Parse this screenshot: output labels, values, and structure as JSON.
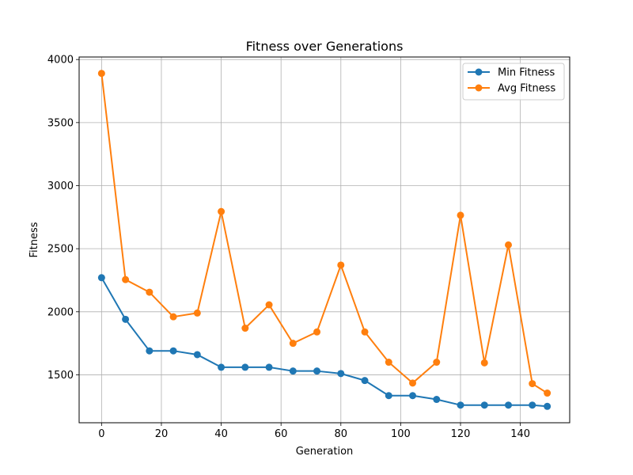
{
  "chart_data": {
    "type": "line",
    "title": "Fitness over Generations",
    "xlabel": "Generation",
    "ylabel": "Fitness",
    "xlim": [
      -7.5,
      156.5
    ],
    "ylim": [
      1120,
      4020
    ],
    "xticks": [
      0,
      20,
      40,
      60,
      80,
      100,
      120,
      140
    ],
    "yticks": [
      1500,
      2000,
      2500,
      3000,
      3500,
      4000
    ],
    "grid": true,
    "legend_position": "top-right",
    "x": [
      0,
      8,
      16,
      24,
      32,
      40,
      48,
      56,
      64,
      72,
      80,
      88,
      96,
      104,
      112,
      120,
      128,
      136,
      144,
      149
    ],
    "series": [
      {
        "name": "Min Fitness",
        "color": "#1f77b4",
        "values": [
          2270,
          1940,
          1690,
          1690,
          1660,
          1560,
          1560,
          1560,
          1530,
          1530,
          1510,
          1455,
          1335,
          1335,
          1305,
          1260,
          1260,
          1260,
          1260,
          1250
        ]
      },
      {
        "name": "Avg Fitness",
        "color": "#ff7f0e",
        "values": [
          3890,
          2255,
          2155,
          1960,
          1990,
          2795,
          1870,
          2055,
          1750,
          1840,
          2370,
          1840,
          1600,
          1435,
          1600,
          2765,
          1595,
          2530,
          1430,
          1355
        ]
      }
    ]
  }
}
